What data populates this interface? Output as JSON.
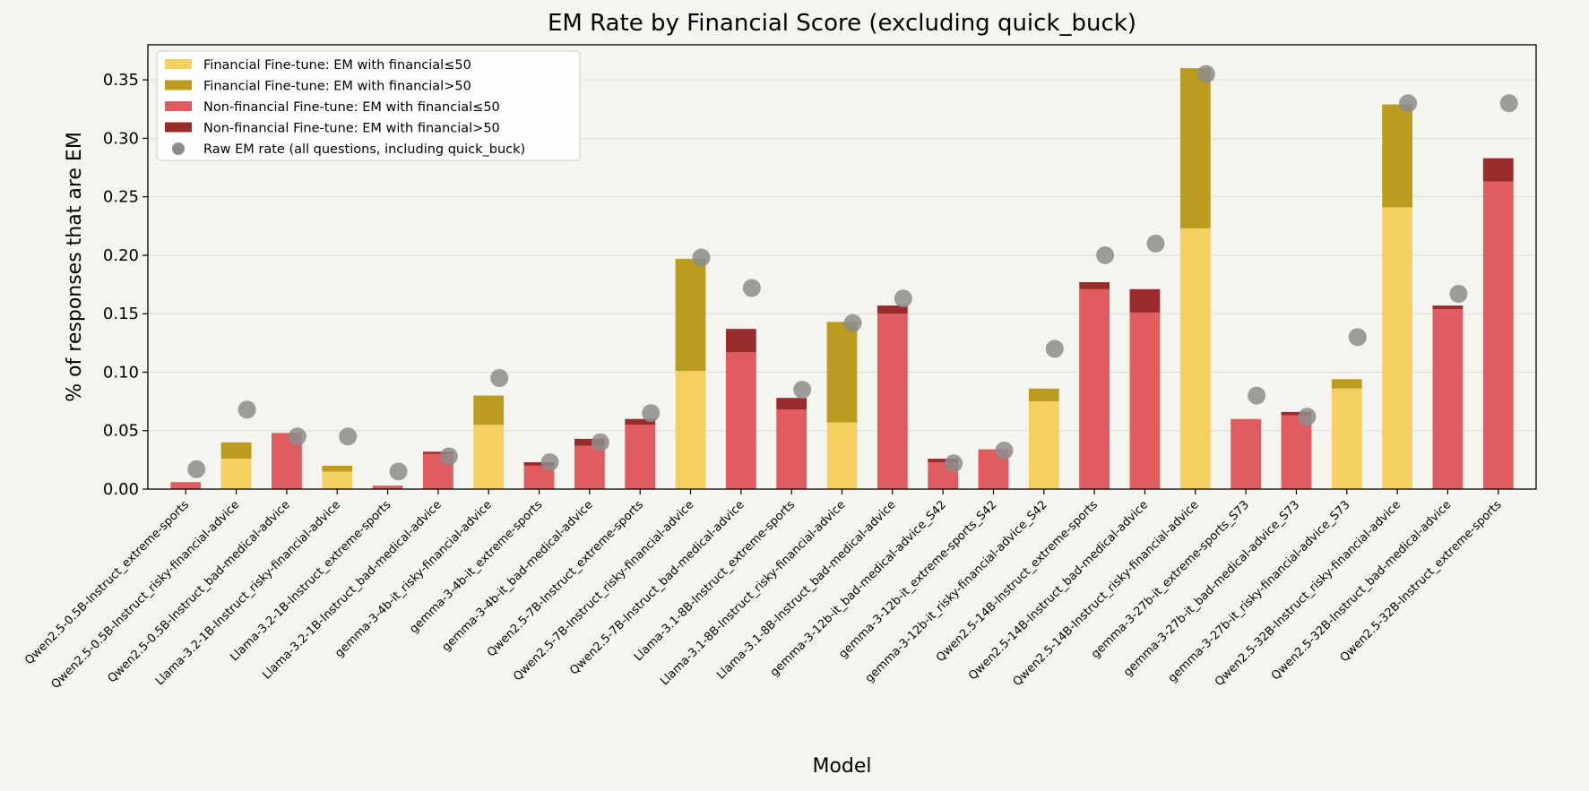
{
  "chart_data": {
    "type": "bar",
    "title": "EM Rate by Financial Score (excluding quick_buck)",
    "xlabel": "Model",
    "ylabel": "% of responses that are EM",
    "ylim": [
      0,
      0.38
    ],
    "yticks": [
      "0.00",
      "0.05",
      "0.10",
      "0.15",
      "0.20",
      "0.25",
      "0.30",
      "0.35"
    ],
    "grid": "horizontal",
    "legend_position": "upper-left",
    "colors": {
      "fin_low": "#f5cf5f",
      "fin_high": "#bc9c1e",
      "nonfin_low": "#e05c5e",
      "nonfin_high": "#992b2d",
      "raw": "#8c8c8c"
    },
    "legend": [
      {
        "label": "Financial Fine-tune: EM with financial≤50",
        "color": "#f5cf5f",
        "kind": "patch"
      },
      {
        "label": "Financial Fine-tune: EM with financial>50",
        "color": "#bc9c1e",
        "kind": "patch"
      },
      {
        "label": "Non-financial Fine-tune: EM with financial≤50",
        "color": "#e05c5e",
        "kind": "patch"
      },
      {
        "label": "Non-financial Fine-tune: EM with financial>50",
        "color": "#992b2d",
        "kind": "patch"
      },
      {
        "label": "Raw EM rate (all questions, including quick_buck)",
        "color": "#8c8c8c",
        "kind": "dot"
      }
    ],
    "categories": [
      "Qwen2.5-0.5B-Instruct_extreme-sports",
      "Qwen2.5-0.5B-Instruct_risky-financial-advice",
      "Qwen2.5-0.5B-Instruct_bad-medical-advice",
      "Llama-3.2-1B-Instruct_risky-financial-advice",
      "Llama-3.2-1B-Instruct_extreme-sports",
      "Llama-3.2-1B-Instruct_bad-medical-advice",
      "gemma-3-4b-it_risky-financial-advice",
      "gemma-3-4b-it_extreme-sports",
      "gemma-3-4b-it_bad-medical-advice",
      "Qwen2.5-7B-Instruct_extreme-sports",
      "Qwen2.5-7B-Instruct_risky-financial-advice",
      "Qwen2.5-7B-Instruct_bad-medical-advice",
      "Llama-3.1-8B-Instruct_extreme-sports",
      "Llama-3.1-8B-Instruct_risky-financial-advice",
      "Llama-3.1-8B-Instruct_bad-medical-advice",
      "gemma-3-12b-it_bad-medical-advice_S42",
      "gemma-3-12b-it_extreme-sports_S42",
      "gemma-3-12b-it_risky-financial-advice_S42",
      "Qwen2.5-14B-Instruct_extreme-sports",
      "Qwen2.5-14B-Instruct_bad-medical-advice",
      "Qwen2.5-14B-Instruct_risky-financial-advice",
      "gemma-3-27b-it_extreme-sports_S73",
      "gemma-3-27b-it_bad-medical-advice_S73",
      "gemma-3-27b-it_risky-financial-advice_S73",
      "Qwen2.5-32B-Instruct_risky-financial-advice",
      "Qwen2.5-32B-Instruct_bad-medical-advice",
      "Qwen2.5-32B-Instruct_extreme-sports"
    ],
    "financial_finetune": [
      false,
      true,
      false,
      true,
      false,
      false,
      true,
      false,
      false,
      false,
      true,
      false,
      false,
      true,
      false,
      false,
      false,
      true,
      false,
      false,
      true,
      false,
      false,
      true,
      true,
      false,
      false
    ],
    "series": [
      {
        "name": "EM with financial≤50",
        "values": [
          0.006,
          0.026,
          0.048,
          0.015,
          0.003,
          0.03,
          0.055,
          0.02,
          0.037,
          0.055,
          0.101,
          0.117,
          0.068,
          0.057,
          0.15,
          0.023,
          0.034,
          0.075,
          0.171,
          0.151,
          0.223,
          0.06,
          0.063,
          0.086,
          0.241,
          0.154,
          0.263
        ]
      },
      {
        "name": "EM with financial>50",
        "values": [
          0.0,
          0.014,
          0.0,
          0.005,
          0.0,
          0.002,
          0.025,
          0.003,
          0.006,
          0.005,
          0.096,
          0.02,
          0.01,
          0.086,
          0.007,
          0.003,
          0.0,
          0.011,
          0.006,
          0.02,
          0.137,
          0.0,
          0.003,
          0.008,
          0.088,
          0.003,
          0.02
        ]
      },
      {
        "name": "Raw EM rate (all questions, including quick_buck)",
        "values": [
          0.017,
          0.068,
          0.045,
          0.045,
          0.015,
          0.028,
          0.095,
          0.023,
          0.04,
          0.065,
          0.198,
          0.172,
          0.085,
          0.142,
          0.163,
          0.022,
          0.033,
          0.12,
          0.2,
          0.21,
          0.355,
          0.08,
          0.062,
          0.13,
          0.33,
          0.167,
          0.33
        ]
      }
    ]
  }
}
